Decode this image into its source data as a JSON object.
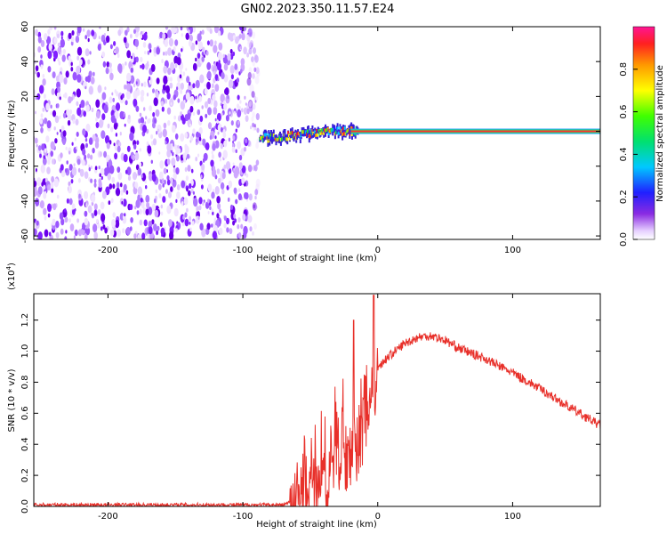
{
  "title": "GN02.2023.350.11.57.E24",
  "chart_data": [
    {
      "type": "heatmap",
      "name": "spectrogram",
      "xlabel": "Height of straight line (km)",
      "ylabel": "Frequency (Hz)",
      "xlim": [
        -255,
        165
      ],
      "ylim": [
        -62,
        60
      ],
      "xticks": [
        -200,
        -100,
        0,
        100
      ],
      "yticks": [
        60,
        40,
        20,
        0,
        -20,
        -40,
        -60
      ],
      "noise_region_x": [
        -255,
        -88
      ],
      "signal_band": {
        "x_start": -88,
        "x_end": 165,
        "center_frequency_hz": [
          [
            -88,
            -4
          ],
          [
            -70,
            -3
          ],
          [
            -50,
            -1
          ],
          [
            -35,
            0
          ],
          [
            -20,
            0
          ],
          [
            0,
            0
          ],
          [
            165,
            0
          ]
        ]
      },
      "colorbar": {
        "label": "Normalized spectral amplitude",
        "range": [
          0.0,
          1.0
        ],
        "ticks": [
          "0.0",
          "0.2",
          "0.4",
          "0.6",
          "0.8"
        ]
      },
      "grid": false
    },
    {
      "type": "line",
      "name": "snr",
      "xlabel": "Height of straight line (km)",
      "ylabel": "SNR (10 * v/v)",
      "multiplier_label": "(x10",
      "multiplier_exp": "4",
      "multiplier_close": ")",
      "xlim": [
        -255,
        165
      ],
      "ylim": [
        0.0,
        1.37
      ],
      "xticks": [
        -200,
        -100,
        0,
        100
      ],
      "yticks": [
        "0.0",
        "0.2",
        "0.4",
        "0.6",
        "0.8",
        "1.0",
        "1.2"
      ],
      "color": "#e8302a",
      "series": [
        {
          "x": [
            -255,
            -200,
            -100,
            -70,
            -62,
            -55,
            -45,
            -35,
            -25,
            -15,
            -10,
            -5,
            0,
            10,
            20,
            30,
            40,
            50,
            60,
            80,
            100,
            120,
            140,
            165
          ],
          "values": [
            0.01,
            0.01,
            0.01,
            0.01,
            0.04,
            0.22,
            0.32,
            0.4,
            0.5,
            0.55,
            0.65,
            0.8,
            0.9,
            0.98,
            1.05,
            1.09,
            1.1,
            1.07,
            1.02,
            0.95,
            0.86,
            0.76,
            0.65,
            0.52
          ]
        }
      ],
      "grid": false
    }
  ]
}
